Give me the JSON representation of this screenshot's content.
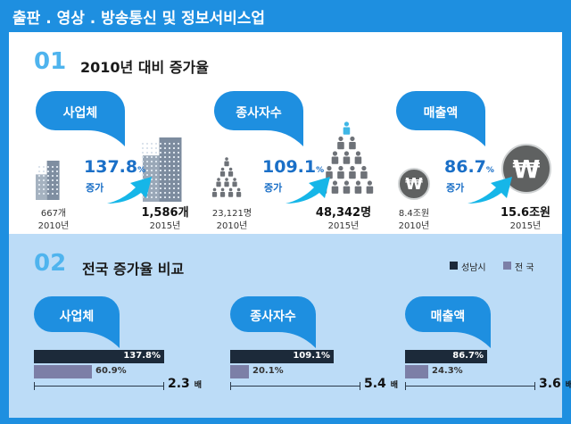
{
  "header": {
    "title": "출판 . 영상 . 방송통신 및 정보서비스업"
  },
  "colors": {
    "accent": "#1e8fe0",
    "seongnam": "#1c2a3a",
    "nation": "#7c7fa7",
    "cyan": "#16b6e8"
  },
  "section1": {
    "num": "01",
    "title": "2010년 대비 증가율",
    "groups": [
      {
        "label": "사업체",
        "v2010": "667개",
        "y2010": "2010년",
        "v2015": "1,586개",
        "y2015": "2015년",
        "pct": "137.8",
        "pct_unit": "%",
        "inc": "증가",
        "icon": "building-icon"
      },
      {
        "label": "종사자수",
        "v2010": "23,121명",
        "y2010": "2010년",
        "v2015": "48,342명",
        "y2015": "2015년",
        "pct": "109.1",
        "pct_unit": "%",
        "inc": "증가",
        "icon": "people-icon"
      },
      {
        "label": "매출액",
        "v2010": "8.4조원",
        "y2010": "2010년",
        "v2015": "15.6조원",
        "y2015": "2015년",
        "pct": "86.7",
        "pct_unit": "%",
        "inc": "증가",
        "icon": "won-coin-icon",
        "coin_symbol": "₩"
      }
    ]
  },
  "section2": {
    "num": "02",
    "title": "전국 증가율 비교",
    "legend": [
      {
        "label": "성남시",
        "color": "#1c2a3a"
      },
      {
        "label": "전 국",
        "color": "#7c7fa7"
      }
    ],
    "ratio_unit": "배"
  },
  "chart_data": {
    "type": "bar",
    "orientation": "horizontal",
    "unit": "%",
    "panels": [
      {
        "title": "사업체",
        "series": [
          {
            "name": "성남시",
            "value": 137.8,
            "label": "137.8%"
          },
          {
            "name": "전 국",
            "value": 60.9,
            "label": "60.9%"
          }
        ],
        "ratio": "2.3"
      },
      {
        "title": "종사자수",
        "series": [
          {
            "name": "성남시",
            "value": 109.1,
            "label": "109.1%"
          },
          {
            "name": "전 국",
            "value": 20.1,
            "label": "20.1%"
          }
        ],
        "ratio": "5.4"
      },
      {
        "title": "매출액",
        "series": [
          {
            "name": "성남시",
            "value": 86.7,
            "label": "86.7%"
          },
          {
            "name": "전 국",
            "value": 24.3,
            "label": "24.3%"
          }
        ],
        "ratio": "3.6"
      }
    ]
  }
}
